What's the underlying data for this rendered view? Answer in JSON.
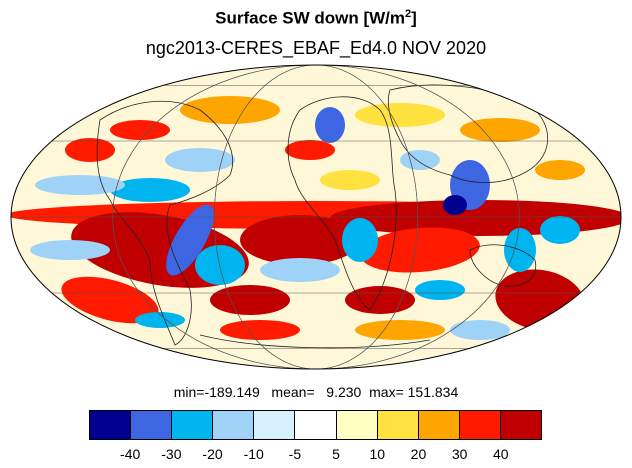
{
  "title": {
    "text": "Surface SW down [W/m",
    "sup": "2",
    "close": "]"
  },
  "subtitle": "ngc2013-CERES_EBAF_Ed4.0  NOV 2020",
  "stats": {
    "min_label": "min=",
    "min": "-189.149",
    "mean_label": "mean=",
    "mean": "9.230",
    "max_label": "max=",
    "max": "151.834"
  },
  "colorbar": {
    "colors": [
      "#00008f",
      "#3f66e2",
      "#00b4f0",
      "#9fd2f7",
      "#d6f1fb",
      "#ffffff",
      "#ffffc4",
      "#ffe13f",
      "#ffa500",
      "#ff1a00",
      "#c00000"
    ],
    "labels": [
      "-40",
      "-30",
      "-20",
      "-10",
      "-5",
      "5",
      "10",
      "20",
      "30",
      "40"
    ]
  },
  "map": {
    "projection": "mollweide",
    "gridlines": true
  }
}
